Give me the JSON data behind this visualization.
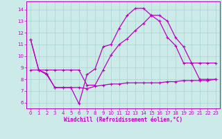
{
  "title": "",
  "xlabel": "Windchill (Refroidissement éolien,°C)",
  "ylabel": "",
  "bg_color": "#cceae7",
  "line_color": "#bb00bb",
  "grid_color": "#aad4d0",
  "x_ticks": [
    0,
    1,
    2,
    3,
    4,
    5,
    6,
    7,
    8,
    9,
    10,
    11,
    12,
    13,
    14,
    15,
    16,
    17,
    18,
    19,
    20,
    21,
    22,
    23
  ],
  "y_ticks": [
    6,
    7,
    8,
    9,
    10,
    11,
    12,
    13,
    14
  ],
  "ylim": [
    5.5,
    14.7
  ],
  "xlim": [
    -0.5,
    23.5
  ],
  "line1_x": [
    0,
    1,
    2,
    3,
    4,
    5,
    6,
    7,
    8,
    9,
    10,
    11,
    12,
    13,
    14,
    15,
    16,
    17,
    18,
    19,
    20,
    21,
    22,
    23
  ],
  "line1_y": [
    11.4,
    8.8,
    8.5,
    7.3,
    7.3,
    7.3,
    5.9,
    8.4,
    8.9,
    10.8,
    11.0,
    12.4,
    13.5,
    14.1,
    14.1,
    13.5,
    13.0,
    11.6,
    10.9,
    9.4,
    9.4,
    8.0,
    8.0,
    8.0
  ],
  "line2_x": [
    0,
    1,
    2,
    3,
    4,
    5,
    6,
    7,
    8,
    9,
    10,
    11,
    12,
    13,
    14,
    15,
    16,
    17,
    18,
    19,
    20,
    21,
    22,
    23
  ],
  "line2_y": [
    11.4,
    8.8,
    8.8,
    8.8,
    8.8,
    8.8,
    8.8,
    7.5,
    7.5,
    8.8,
    10.1,
    11.0,
    11.5,
    12.2,
    12.8,
    13.5,
    13.5,
    13.0,
    11.6,
    10.8,
    9.4,
    9.4,
    9.4,
    9.4
  ],
  "line3_x": [
    0,
    1,
    2,
    3,
    4,
    5,
    6,
    7,
    8,
    9,
    10,
    11,
    12,
    13,
    14,
    15,
    16,
    17,
    18,
    19,
    20,
    21,
    22,
    23
  ],
  "line3_y": [
    8.8,
    8.8,
    8.4,
    7.3,
    7.3,
    7.3,
    7.3,
    7.2,
    7.4,
    7.5,
    7.6,
    7.6,
    7.7,
    7.7,
    7.7,
    7.7,
    7.7,
    7.8,
    7.8,
    7.9,
    7.9,
    7.9,
    7.9,
    8.0
  ]
}
